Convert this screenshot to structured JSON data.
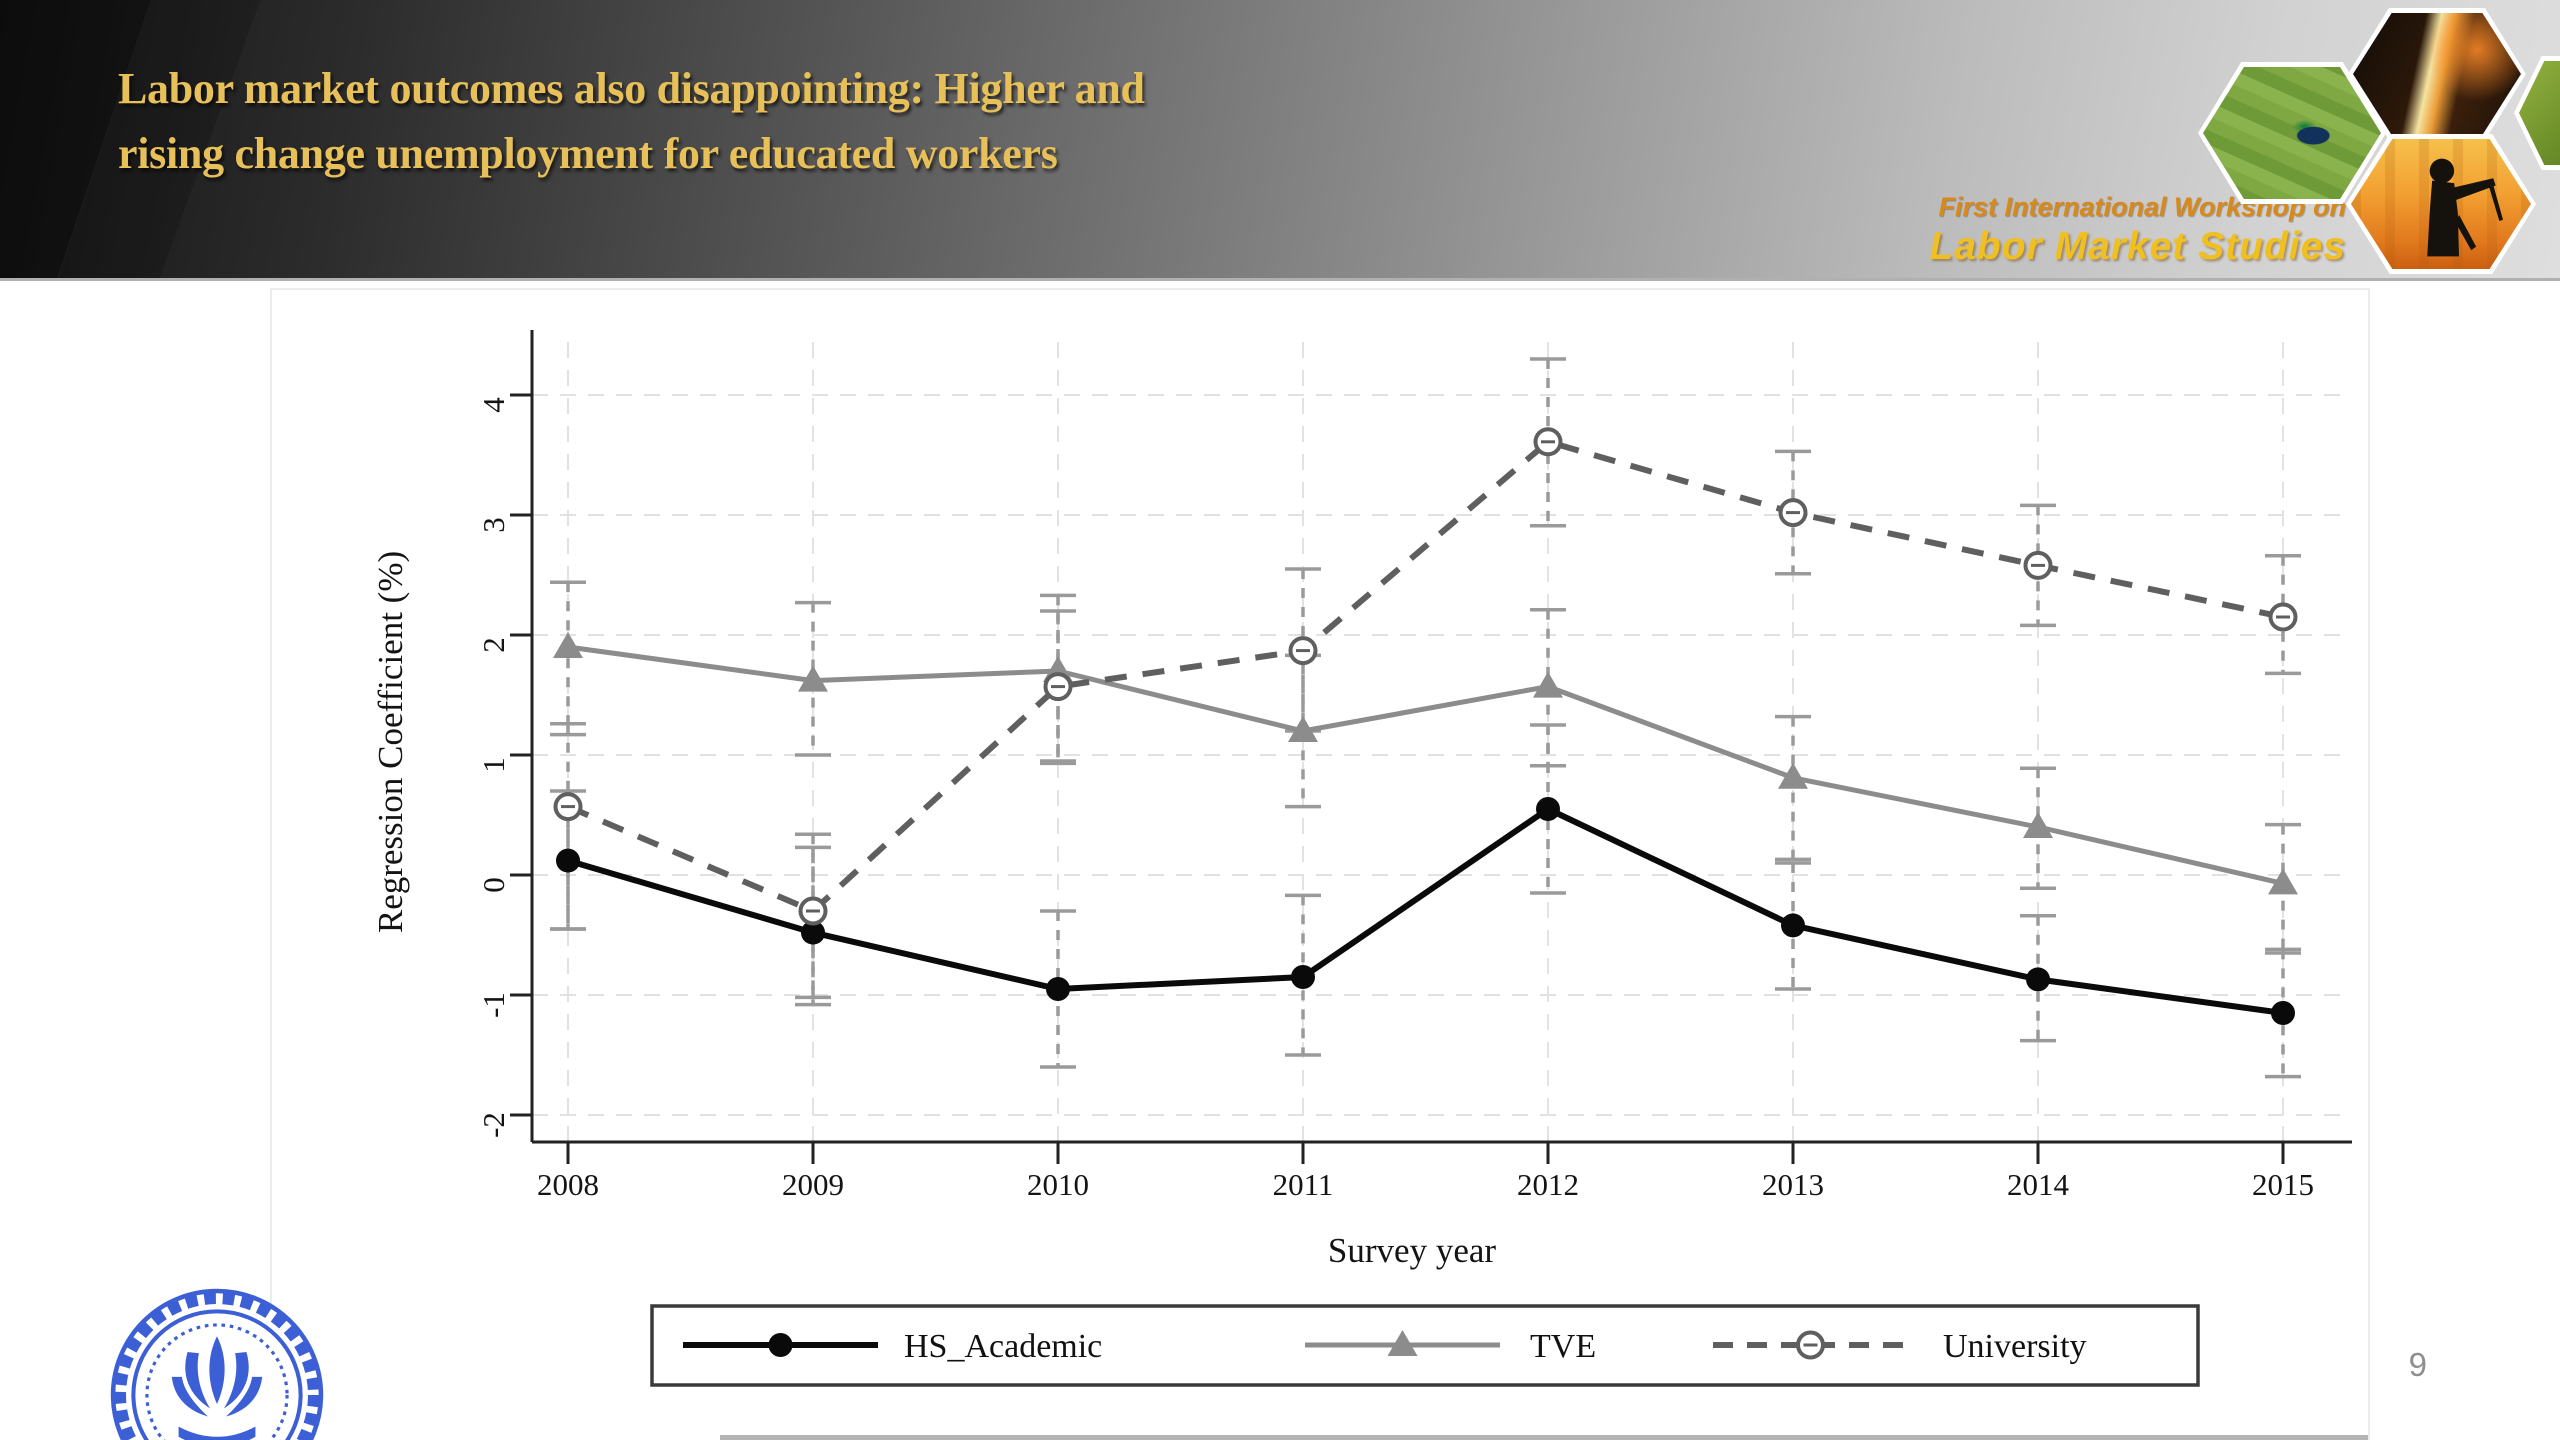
{
  "header": {
    "title_line1": "Labor market outcomes also disappointing: Higher and",
    "title_line2": "rising change unemployment for educated workers",
    "workshop_line1": "First International Workshop on",
    "workshop_line2": "Labor Market Studies"
  },
  "footer": {
    "page_number": "9"
  },
  "colors": {
    "title_gold": "#e7c05a",
    "workshop_orange": "#d8891b",
    "workshop_yellow": "#f0c020",
    "logo_blue": "#3c5fd6",
    "axis": "#222222",
    "grid": "#e2e2e2",
    "error_bar": "#9a9a9a",
    "text": "#141414",
    "page_number_gray": "#8f8f8f"
  },
  "chart_data": {
    "type": "line",
    "title": "",
    "xlabel": "Survey year",
    "ylabel": "Regression Coefficient (%)",
    "categories": [
      "2008",
      "2009",
      "2010",
      "2011",
      "2012",
      "2013",
      "2014",
      "2015"
    ],
    "y_ticks": [
      -2,
      -1,
      0,
      1,
      2,
      3,
      4
    ],
    "ylim": [
      -2.2,
      4.45
    ],
    "grid": "on",
    "legend_position": "bottom",
    "series": [
      {
        "name": "HS_Academic",
        "color": "#0a0a0a",
        "marker": "circle",
        "line_style": "solid",
        "values": [
          0.12,
          -0.48,
          -0.95,
          -0.85,
          0.55,
          -0.42,
          -0.87,
          -1.15
        ],
        "ci_low": [
          -0.45,
          -1.08,
          -1.6,
          -1.5,
          -0.15,
          -0.95,
          -1.38,
          -1.68
        ],
        "ci_high": [
          0.7,
          0.23,
          -0.3,
          -0.17,
          1.25,
          0.1,
          -0.34,
          -0.62
        ]
      },
      {
        "name": "TVE",
        "color": "#8c8c8c",
        "marker": "triangle",
        "line_style": "solid",
        "values": [
          1.9,
          1.62,
          1.7,
          1.2,
          1.57,
          0.81,
          0.4,
          -0.07
        ],
        "ci_low": [
          1.17,
          1.0,
          0.93,
          0.57,
          0.91,
          0.13,
          -0.11,
          -0.65
        ],
        "ci_high": [
          2.44,
          2.27,
          2.33,
          1.83,
          2.21,
          1.32,
          0.89,
          0.42
        ]
      },
      {
        "name": "University",
        "color": "#5f5f5f",
        "marker": "circle-minus",
        "line_style": "dashed",
        "values": [
          0.57,
          -0.3,
          1.57,
          1.87,
          3.61,
          3.02,
          2.58,
          2.15
        ],
        "ci_low": [
          -0.45,
          -1.02,
          0.95,
          1.2,
          2.91,
          2.51,
          2.08,
          1.68
        ],
        "ci_high": [
          1.26,
          0.34,
          2.2,
          2.55,
          4.3,
          3.53,
          3.08,
          2.66
        ]
      }
    ]
  }
}
